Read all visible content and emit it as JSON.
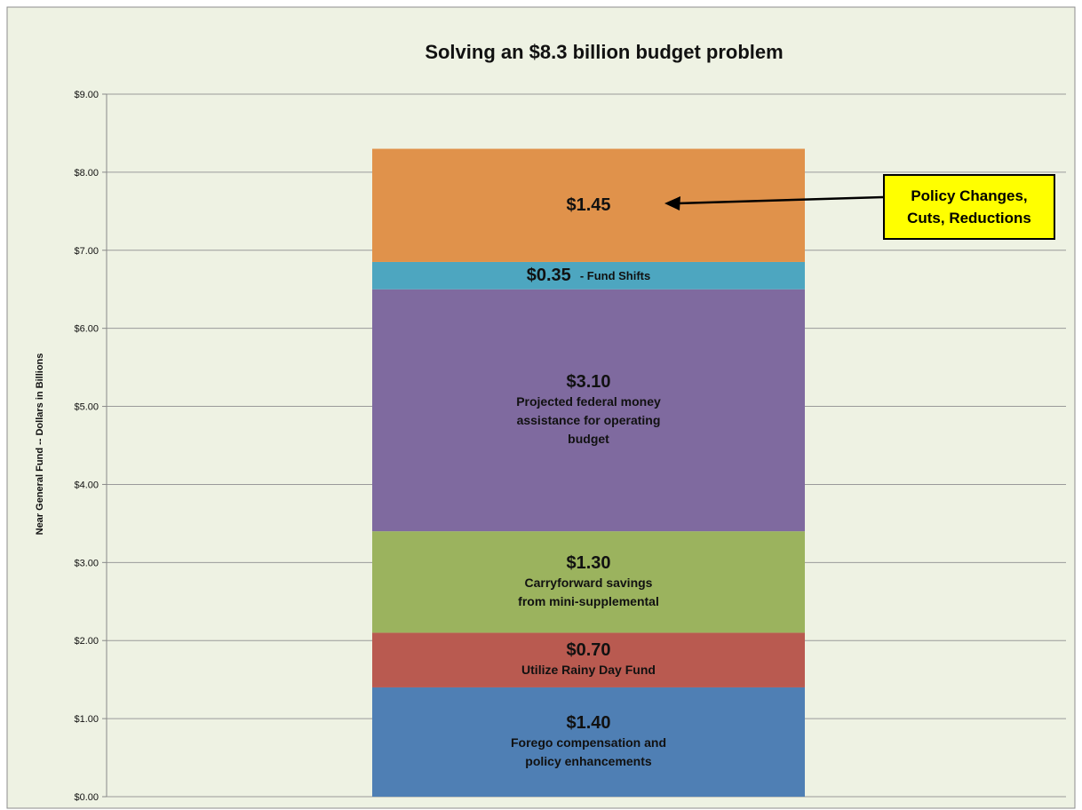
{
  "chart_data": {
    "type": "stacked_bar",
    "title": "Solving an $8.3 billion budget problem",
    "y_label": "Near General Fund -- Dollars in Billions",
    "categories": [
      null
    ],
    "series": [
      {
        "name": "Forego compensation and\npolicy  enhancements",
        "color": "#4f7fb4",
        "values": [
          1.4
        ],
        "value_labels": [
          "$1.40"
        ]
      },
      {
        "name": "Utilize Rainy Day Fund",
        "color": "#b95a50",
        "values": [
          0.7
        ],
        "value_labels": [
          "$0.70"
        ]
      },
      {
        "name": "Carryforward savings\nfrom mini-supplemental",
        "color": "#9bb35e",
        "values": [
          1.3
        ],
        "value_labels": [
          "$1.30"
        ]
      },
      {
        "name": "Projected federal money\nassistance for operating\nbudget",
        "color": "#7f6a9f",
        "values": [
          3.1
        ],
        "value_labels": [
          "$3.10"
        ]
      },
      {
        "name": "-  Fund Shifts",
        "color": "#4da6c0",
        "values": [
          0.35
        ],
        "value_labels": [
          "$0.35"
        ]
      },
      {
        "color": "#e0924b",
        "values": [
          1.45
        ],
        "value_labels": [
          "$1.45"
        ]
      }
    ],
    "annotation": "Policy Changes,\nCuts, Reductions",
    "ylim": [
      0,
      9
    ],
    "yticks": [
      {
        "value": 0,
        "label": "$0.00"
      },
      {
        "value": 1,
        "label": "$1.00"
      },
      {
        "value": 2,
        "label": "$2.00"
      },
      {
        "value": 3,
        "label": "$3.00"
      },
      {
        "value": 4,
        "label": "$4.00"
      },
      {
        "value": 5,
        "label": "$5.00"
      },
      {
        "value": 6,
        "label": "$6.00"
      },
      {
        "value": 7,
        "label": "$7.00"
      },
      {
        "value": 8,
        "label": "$8.00"
      },
      {
        "value": 9,
        "label": "$9.00"
      }
    ],
    "grid": true
  }
}
